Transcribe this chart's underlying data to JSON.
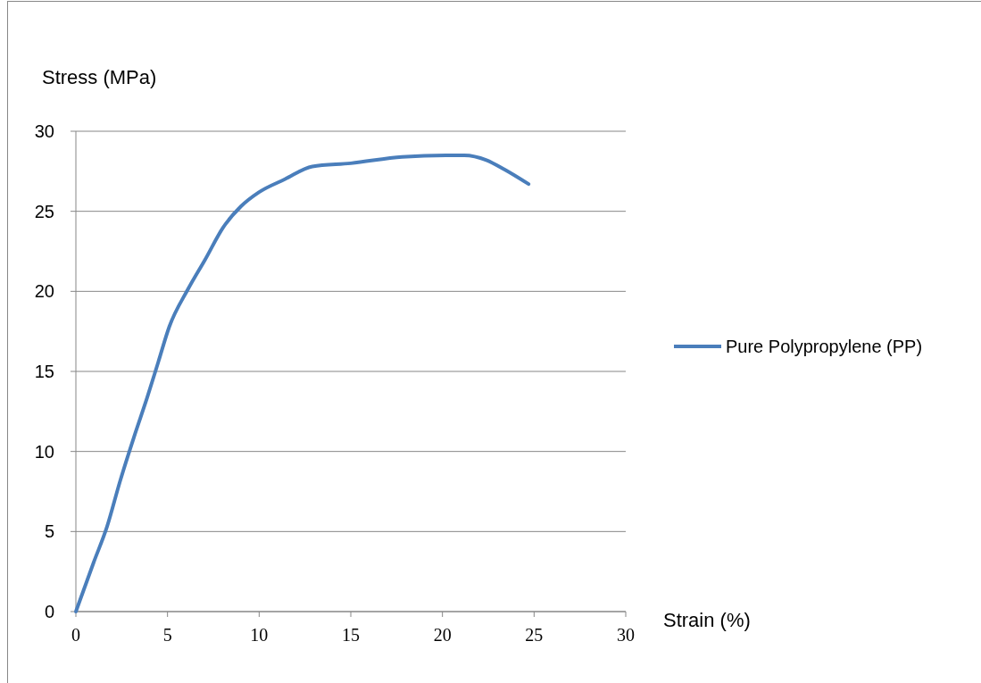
{
  "chart_data": {
    "type": "line",
    "xlabel": "Strain (%)",
    "ylabel": "Stress (MPa)",
    "xlim": [
      0,
      30
    ],
    "xticks": [
      0,
      5,
      10,
      15,
      20,
      25,
      30
    ],
    "ylim": [
      0,
      30
    ],
    "yticks": [
      0,
      5,
      10,
      15,
      20,
      25,
      30
    ],
    "grid": "y",
    "legend": "right",
    "marker": "none",
    "line_style": "solid",
    "series": [
      {
        "name": "Pure Polypropylene (PP)",
        "color": "#4a7ebb",
        "x": [
          0,
          0.97,
          1.7,
          2.4,
          3.17,
          3.9,
          4.5,
          5.1,
          6.1,
          7.06,
          8.04,
          9.0,
          10.0,
          11.4,
          12.9,
          15.0,
          17.8,
          20.2,
          21.2,
          22.4,
          23.4,
          24.7
        ],
        "values": [
          0,
          3.07,
          5.3,
          8.1,
          10.9,
          13.4,
          15.6,
          17.8,
          20.1,
          22.0,
          24.0,
          25.3,
          26.2,
          27.0,
          27.8,
          28.0,
          28.4,
          28.5,
          28.5,
          28.2,
          27.6,
          26.7
        ]
      }
    ]
  }
}
